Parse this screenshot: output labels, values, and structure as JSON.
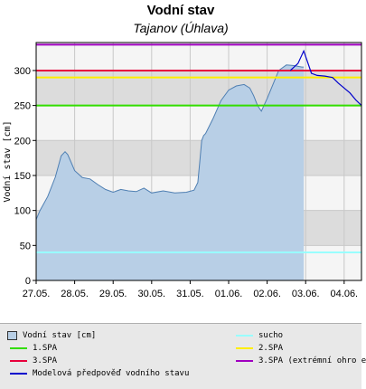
{
  "chart_data": {
    "type": "line",
    "title": "Vodní stav",
    "subtitle": "Tajanov (Úhlava)",
    "ylabel": "Vodní stav [cm]",
    "ylim": [
      0,
      340
    ],
    "yticks": [
      0,
      50,
      100,
      150,
      200,
      250,
      300
    ],
    "xlim": [
      0,
      8.45
    ],
    "categories": [
      "27.05.",
      "28.05.",
      "29.05.",
      "30.05.",
      "31.05.",
      "01.06.",
      "02.06.",
      "03.06.",
      "04.06."
    ],
    "grid": true,
    "legend_position": "bottom",
    "thresholds": [
      {
        "name": "sucho",
        "value": 40,
        "color": "#99ffff"
      },
      {
        "name": "1.SPA",
        "value": 250,
        "color": "#33dd00"
      },
      {
        "name": "2.SPA",
        "value": 290,
        "color": "#ffee00"
      },
      {
        "name": "3.SPA",
        "value": 300,
        "color": "#e8003c"
      },
      {
        "name": "3.SPA (extrémní ohro e",
        "value": 337,
        "color": "#a000c0"
      }
    ],
    "series": [
      {
        "name": "Vodní stav [cm]",
        "kind": "area",
        "color": "#b8cfe6",
        "stroke": "#4f7fb2",
        "x": [
          0,
          0.1,
          0.3,
          0.5,
          0.65,
          0.75,
          0.82,
          0.9,
          1.0,
          1.2,
          1.4,
          1.6,
          1.8,
          2.0,
          2.2,
          2.4,
          2.6,
          2.8,
          3.0,
          3.3,
          3.6,
          3.9,
          4.1,
          4.2,
          4.25,
          4.3,
          4.35,
          4.4,
          4.6,
          4.8,
          5.0,
          5.2,
          5.4,
          5.55,
          5.65,
          5.75,
          5.85,
          6.0,
          6.15,
          6.3,
          6.5,
          6.7,
          6.9,
          6.95
        ],
        "y": [
          87,
          100,
          120,
          148,
          178,
          184,
          180,
          170,
          157,
          147,
          145,
          137,
          130,
          126,
          130,
          128,
          127,
          132,
          125,
          128,
          125,
          126,
          129,
          140,
          170,
          200,
          207,
          210,
          232,
          257,
          272,
          278,
          280,
          275,
          264,
          250,
          242,
          260,
          280,
          300,
          308,
          307,
          305,
          305
        ]
      },
      {
        "name": "Modelová předpověď vodního stavu",
        "kind": "line",
        "color": "#0000cc",
        "x": [
          6.6,
          6.8,
          6.95,
          7.05,
          7.15,
          7.3,
          7.5,
          7.7,
          7.85,
          8.0,
          8.15,
          8.3,
          8.45
        ],
        "y": [
          300,
          310,
          328,
          312,
          296,
          293,
          292,
          290,
          282,
          275,
          268,
          258,
          250
        ]
      }
    ],
    "legend": [
      {
        "label": "Vodní stav [cm]",
        "symbol": "box",
        "color": "#b8cfe6"
      },
      {
        "label": "sucho",
        "symbol": "line",
        "color": "#99ffff"
      },
      {
        "label": "1.SPA",
        "symbol": "line",
        "color": "#33dd00"
      },
      {
        "label": "2.SPA",
        "symbol": "line",
        "color": "#ffee00"
      },
      {
        "label": "3.SPA",
        "symbol": "line",
        "color": "#e8003c"
      },
      {
        "label": "3.SPA (extrémní ohro e",
        "symbol": "line",
        "color": "#a000c0"
      },
      {
        "label": "Modelová předpověď vodního stavu",
        "symbol": "line",
        "color": "#0000cc"
      }
    ]
  }
}
